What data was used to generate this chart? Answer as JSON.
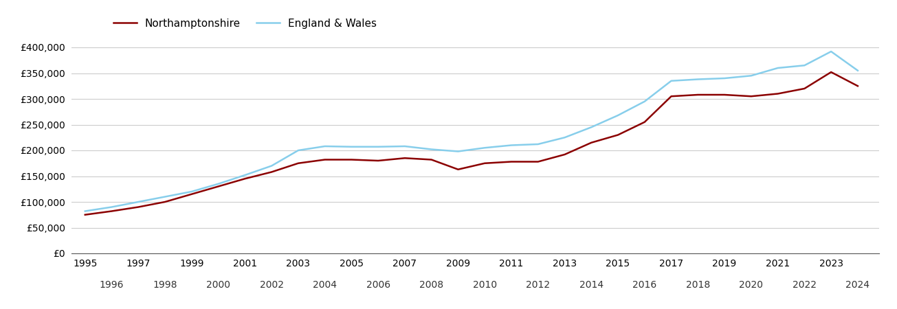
{
  "northamptonshire": {
    "label": "Northamptonshire",
    "color": "#8B0000",
    "years": [
      1995,
      1996,
      1997,
      1998,
      1999,
      2000,
      2001,
      2002,
      2003,
      2004,
      2005,
      2006,
      2007,
      2008,
      2009,
      2010,
      2011,
      2012,
      2013,
      2014,
      2015,
      2016,
      2017,
      2018,
      2019,
      2020,
      2021,
      2022,
      2023,
      2024
    ],
    "values": [
      75000,
      82000,
      90000,
      100000,
      115000,
      130000,
      145000,
      158000,
      175000,
      182000,
      182000,
      180000,
      185000,
      182000,
      163000,
      175000,
      178000,
      178000,
      192000,
      215000,
      230000,
      255000,
      305000,
      308000,
      308000,
      305000,
      310000,
      320000,
      352000,
      325000
    ]
  },
  "england_wales": {
    "label": "England & Wales",
    "color": "#87CEEB",
    "years": [
      1995,
      1996,
      1997,
      1998,
      1999,
      2000,
      2001,
      2002,
      2003,
      2004,
      2005,
      2006,
      2007,
      2008,
      2009,
      2010,
      2011,
      2012,
      2013,
      2014,
      2015,
      2016,
      2017,
      2018,
      2019,
      2020,
      2021,
      2022,
      2023,
      2024
    ],
    "values": [
      82000,
      90000,
      100000,
      110000,
      120000,
      135000,
      152000,
      170000,
      200000,
      208000,
      207000,
      207000,
      208000,
      202000,
      198000,
      205000,
      210000,
      212000,
      225000,
      245000,
      268000,
      295000,
      335000,
      338000,
      340000,
      345000,
      360000,
      365000,
      392000,
      355000
    ]
  },
  "ytick_labels": [
    "£0",
    "£50,000",
    "£100,000",
    "£150,000",
    "£200,000",
    "£250,000",
    "£300,000",
    "£350,000",
    "£400,000"
  ],
  "ytick_values": [
    0,
    50000,
    100000,
    150000,
    200000,
    250000,
    300000,
    350000,
    400000
  ],
  "ylim": [
    0,
    420000
  ],
  "xtick_odd": [
    1995,
    1997,
    1999,
    2001,
    2003,
    2005,
    2007,
    2009,
    2011,
    2013,
    2015,
    2017,
    2019,
    2021,
    2023
  ],
  "xtick_even": [
    1996,
    1998,
    2000,
    2002,
    2004,
    2006,
    2008,
    2010,
    2012,
    2014,
    2016,
    2018,
    2020,
    2022,
    2024
  ],
  "xlim": [
    1994.5,
    2024.8
  ],
  "line_width": 1.8,
  "background_color": "#ffffff",
  "grid_color": "#cccccc",
  "legend_fontsize": 11,
  "tick_fontsize": 10
}
